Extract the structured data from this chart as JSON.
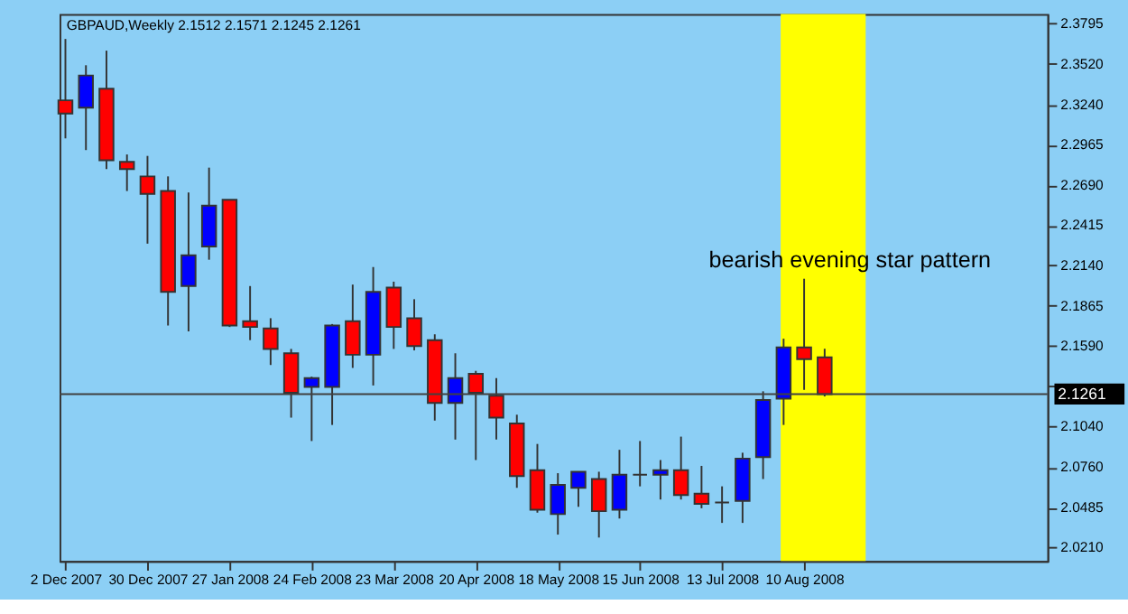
{
  "chart_data": {
    "type": "candlestick",
    "title": "GBPAUD,Weekly  2.1512 2.1571 2.1245 2.1261",
    "x": [
      "2007-12-02",
      "2007-12-09",
      "2007-12-16",
      "2007-12-23",
      "2007-12-30",
      "2008-01-06",
      "2008-01-13",
      "2008-01-20",
      "2008-01-27",
      "2008-02-03",
      "2008-02-10",
      "2008-02-17",
      "2008-02-24",
      "2008-03-02",
      "2008-03-09",
      "2008-03-16",
      "2008-03-23",
      "2008-03-30",
      "2008-04-06",
      "2008-04-13",
      "2008-04-20",
      "2008-04-27",
      "2008-05-04",
      "2008-05-11",
      "2008-05-18",
      "2008-05-25",
      "2008-06-01",
      "2008-06-08",
      "2008-06-15",
      "2008-06-22",
      "2008-06-29",
      "2008-07-06",
      "2008-07-13",
      "2008-07-20",
      "2008-07-27",
      "2008-08-03",
      "2008-08-10",
      "2008-08-17"
    ],
    "ohlc": [
      [
        2.327,
        2.369,
        2.301,
        2.318
      ],
      [
        2.322,
        2.351,
        2.293,
        2.344
      ],
      [
        2.335,
        2.361,
        2.28,
        2.286
      ],
      [
        2.285,
        2.29,
        2.265,
        2.28
      ],
      [
        2.275,
        2.289,
        2.229,
        2.263
      ],
      [
        2.265,
        2.275,
        2.173,
        2.196
      ],
      [
        2.2,
        2.264,
        2.169,
        2.221
      ],
      [
        2.227,
        2.281,
        2.218,
        2.255
      ],
      [
        2.259,
        2.259,
        2.172,
        2.173
      ],
      [
        2.176,
        2.2,
        2.163,
        2.172
      ],
      [
        2.171,
        2.178,
        2.146,
        2.157
      ],
      [
        2.154,
        2.157,
        2.11,
        2.127
      ],
      [
        2.131,
        2.138,
        2.094,
        2.137
      ],
      [
        2.131,
        2.174,
        2.105,
        2.173
      ],
      [
        2.176,
        2.201,
        2.144,
        2.153
      ],
      [
        2.153,
        2.213,
        2.132,
        2.196
      ],
      [
        2.199,
        2.203,
        2.157,
        2.172
      ],
      [
        2.178,
        2.191,
        2.156,
        2.159
      ],
      [
        2.163,
        2.167,
        2.108,
        2.12
      ],
      [
        2.12,
        2.154,
        2.095,
        2.137
      ],
      [
        2.14,
        2.142,
        2.081,
        2.127
      ],
      [
        2.125,
        2.137,
        2.095,
        2.11
      ],
      [
        2.106,
        2.112,
        2.062,
        2.07
      ],
      [
        2.074,
        2.092,
        2.045,
        2.047
      ],
      [
        2.044,
        2.072,
        2.03,
        2.064
      ],
      [
        2.062,
        2.073,
        2.049,
        2.073
      ],
      [
        2.068,
        2.073,
        2.028,
        2.046
      ],
      [
        2.047,
        2.088,
        2.041,
        2.071
      ],
      [
        2.071,
        2.094,
        2.063,
        2.071
      ],
      [
        2.071,
        2.081,
        2.054,
        2.074
      ],
      [
        2.074,
        2.097,
        2.054,
        2.057
      ],
      [
        2.058,
        2.077,
        2.048,
        2.051
      ],
      [
        2.052,
        2.063,
        2.038,
        2.052
      ],
      [
        2.053,
        2.086,
        2.038,
        2.082
      ],
      [
        2.083,
        2.128,
        2.068,
        2.122
      ],
      [
        2.123,
        2.164,
        2.105,
        2.158
      ],
      [
        2.158,
        2.205,
        2.129,
        2.15
      ],
      [
        2.1512,
        2.1571,
        2.1245,
        2.1261
      ]
    ],
    "colors": [
      "#ff0000",
      "#0000ff",
      "#ff0000",
      "#ff0000",
      "#ff0000",
      "#ff0000",
      "#0000ff",
      "#0000ff",
      "#ff0000",
      "#ff0000",
      "#ff0000",
      "#ff0000",
      "#0000ff",
      "#0000ff",
      "#ff0000",
      "#0000ff",
      "#ff0000",
      "#ff0000",
      "#ff0000",
      "#0000ff",
      "#ff0000",
      "#ff0000",
      "#ff0000",
      "#ff0000",
      "#0000ff",
      "#0000ff",
      "#ff0000",
      "#0000ff",
      "#333333",
      "#0000ff",
      "#ff0000",
      "#ff0000",
      "#333333",
      "#0000ff",
      "#0000ff",
      "#0000ff",
      "#ff0000",
      "#ff0000"
    ],
    "xlim": [
      "2007-11-30",
      "2008-11-01"
    ],
    "xticks": [
      {
        "value": "2007-12-02",
        "label": "2 Dec 2007"
      },
      {
        "value": "2007-12-30",
        "label": "30 Dec 2007"
      },
      {
        "value": "2008-01-27",
        "label": "27 Jan 2008"
      },
      {
        "value": "2008-02-24",
        "label": "24 Feb 2008"
      },
      {
        "value": "2008-03-23",
        "label": "23 Mar 2008"
      },
      {
        "value": "2008-04-20",
        "label": "20 Apr 2008"
      },
      {
        "value": "2008-05-18",
        "label": "18 May 2008"
      },
      {
        "value": "2008-06-15",
        "label": "15 Jun 2008"
      },
      {
        "value": "2008-07-13",
        "label": "13 Jul 2008"
      },
      {
        "value": "2008-08-10",
        "label": "10 Aug 2008"
      }
    ],
    "ylim": [
      2.012,
      2.386
    ],
    "yticks": [
      {
        "value": 2.021,
        "label": "2.0210"
      },
      2.0485,
      {
        "value": 2.076,
        "label": "2.0760"
      },
      {
        "value": 2.104,
        "label": "2.1040"
      },
      {
        "value": 2.1315,
        "label": null
      },
      {
        "value": 2.159,
        "label": "2.1590"
      },
      2.1865,
      {
        "value": 2.214,
        "label": "2.2140"
      },
      2.2415,
      {
        "value": 2.269,
        "label": "2.2690"
      },
      2.2965,
      {
        "value": 2.324,
        "label": "2.3240"
      },
      {
        "value": 2.352,
        "label": "2.3520"
      },
      2.3795
    ],
    "ref_lines": [
      {
        "axis": "y",
        "value": 2.1261,
        "label": "2.1261",
        "color": "#404040"
      }
    ],
    "bands": [
      {
        "axis": "x",
        "from": "2008-08-02",
        "to": "2008-08-31",
        "color": "#ffff00"
      }
    ],
    "annotations": [
      "bearish evening star pattern"
    ],
    "grid": false
  }
}
